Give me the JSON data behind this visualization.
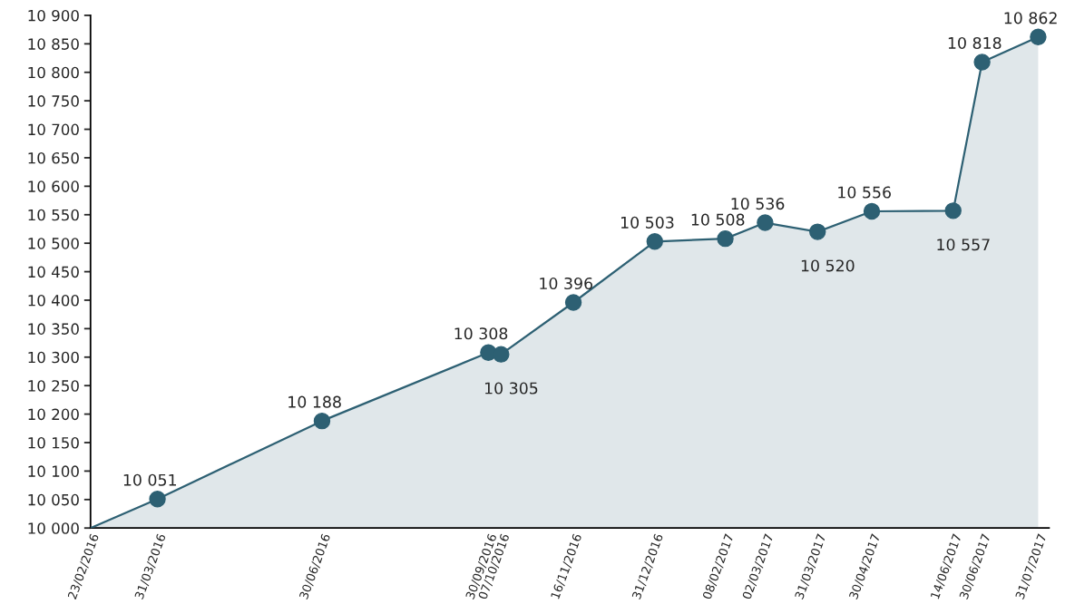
{
  "chart_data": {
    "type": "area",
    "x": [
      "2016-02-23",
      "2016-03-31",
      "2016-06-30",
      "2016-09-30",
      "2016-10-07",
      "2016-11-16",
      "2016-12-31",
      "2017-02-08",
      "2017-03-02",
      "2017-03-31",
      "2017-04-30",
      "2017-06-14",
      "2017-06-30",
      "2017-07-31"
    ],
    "series": [
      {
        "color": "#2d6073",
        "values": [
          10000,
          10051,
          10188,
          10308,
          10305,
          10396,
          10503,
          10508,
          10536,
          10520,
          10556,
          10557,
          10818,
          10862
        ],
        "value_labels": [
          null,
          "10 051",
          "10 188",
          "10 308",
          "10 305",
          "10 396",
          "10 503",
          "10 508",
          "10 536",
          "10 520",
          "10 556",
          "10 557",
          "10 818",
          "10 862"
        ]
      }
    ],
    "marker": "circle",
    "grid": false,
    "legend": false,
    "xlim": [
      "2016-02-23",
      "2017-08-06"
    ],
    "ylim": [
      10000,
      10900
    ],
    "xticks": [
      {
        "value": "2016-02-23",
        "label": "23/02/2016"
      },
      {
        "value": "2016-03-31",
        "label": "31/03/2016"
      },
      {
        "value": "2016-06-30",
        "label": "30/06/2016"
      },
      {
        "value": "2016-09-30",
        "label": "30/09/2016"
      },
      {
        "value": "2016-10-07",
        "label": "07/10/2016"
      },
      {
        "value": "2016-11-16",
        "label": "16/11/2016"
      },
      {
        "value": "2016-12-31",
        "label": "31/12/2016"
      },
      {
        "value": "2017-02-08",
        "label": "08/02/2017"
      },
      {
        "value": "2017-03-02",
        "label": "02/03/2017"
      },
      {
        "value": "2017-03-31",
        "label": "31/03/2017"
      },
      {
        "value": "2017-04-30",
        "label": "30/04/2017"
      },
      {
        "value": "2017-06-14",
        "label": "14/06/2017"
      },
      {
        "value": "2017-06-30",
        "label": "30/06/2017"
      },
      {
        "value": "2017-07-31",
        "label": "31/07/2017"
      }
    ],
    "yticks": [
      {
        "value": 10000,
        "label": "10 000"
      },
      {
        "value": 10050,
        "label": "10 050"
      },
      {
        "value": 10100,
        "label": "10 100"
      },
      {
        "value": 10150,
        "label": "10 150"
      },
      {
        "value": 10200,
        "label": "10 200"
      },
      {
        "value": 10250,
        "label": "10 250"
      },
      {
        "value": 10300,
        "label": "10 300"
      },
      {
        "value": 10350,
        "label": "10 350"
      },
      {
        "value": 10400,
        "label": "10 400"
      },
      {
        "value": 10450,
        "label": "10 450"
      },
      {
        "value": 10500,
        "label": "10 500"
      },
      {
        "value": 10550,
        "label": "10 550"
      },
      {
        "value": 10600,
        "label": "10 600"
      },
      {
        "value": 10650,
        "label": "10 650"
      },
      {
        "value": 10700,
        "label": "10 700"
      },
      {
        "value": 10750,
        "label": "10 750"
      },
      {
        "value": 10800,
        "label": "10 800"
      },
      {
        "value": 10850,
        "label": "10 850"
      },
      {
        "value": 10900,
        "label": "10 900"
      }
    ]
  }
}
